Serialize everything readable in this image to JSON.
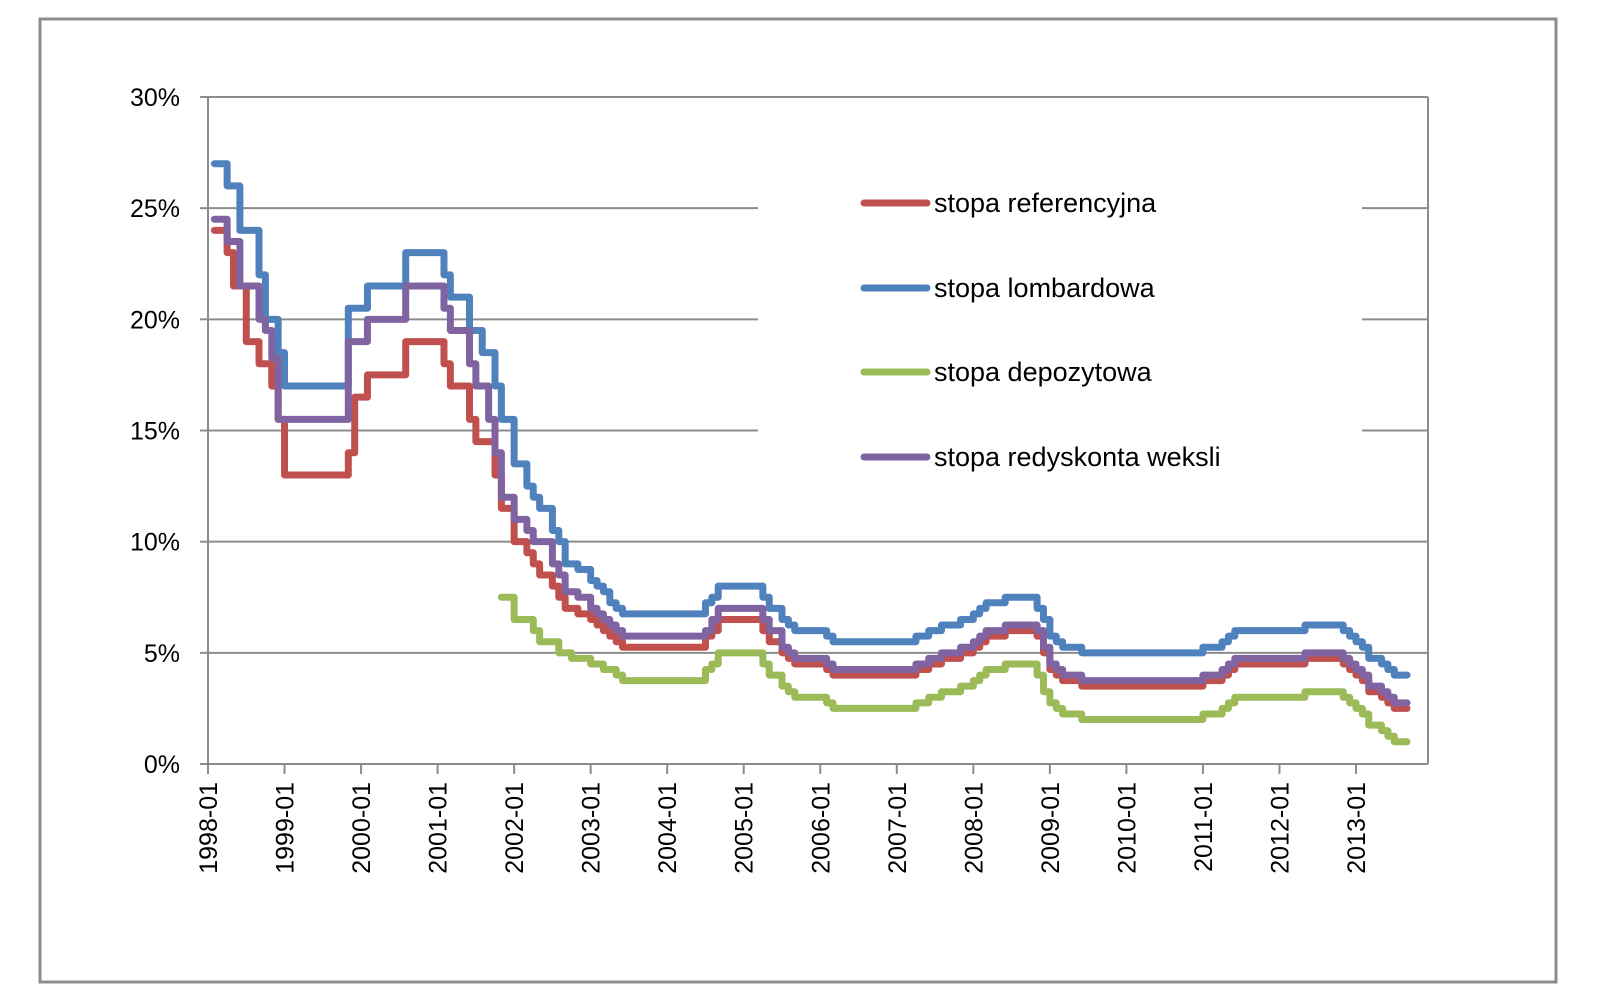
{
  "chart_data": {
    "type": "line",
    "step": true,
    "title": "",
    "xlabel": "",
    "ylabel": "",
    "ylim": [
      0,
      0.3
    ],
    "yticks": [
      0,
      0.05,
      0.1,
      0.15,
      0.2,
      0.25,
      0.3
    ],
    "ytick_labels": [
      "0%",
      "5%",
      "10%",
      "15%",
      "20%",
      "25%",
      "30%"
    ],
    "xticks": [
      "1998-01",
      "1999-01",
      "2000-01",
      "2001-01",
      "2002-01",
      "2003-01",
      "2004-01",
      "2005-01",
      "2006-01",
      "2007-01",
      "2008-01",
      "2009-01",
      "2010-01",
      "2011-01",
      "2012-01",
      "2013-01"
    ],
    "x_range": [
      "1998-01",
      "2013-09"
    ],
    "grid": "horizontal",
    "legend_position": "top-right-inside",
    "series": [
      {
        "name": "stopa referencyjna",
        "color": "#C0504D",
        "points": [
          [
            "1998-02",
            0.24
          ],
          [
            "1998-04",
            0.23
          ],
          [
            "1998-05",
            0.215
          ],
          [
            "1998-07",
            0.19
          ],
          [
            "1998-09",
            0.18
          ],
          [
            "1998-11",
            0.17
          ],
          [
            "1998-12",
            0.155
          ],
          [
            "1999-01",
            0.13
          ],
          [
            "1999-11",
            0.14
          ],
          [
            "1999-12",
            0.165
          ],
          [
            "2000-02",
            0.175
          ],
          [
            "2000-08",
            0.19
          ],
          [
            "2001-02",
            0.18
          ],
          [
            "2001-03",
            0.17
          ],
          [
            "2001-06",
            0.155
          ],
          [
            "2001-07",
            0.145
          ],
          [
            "2001-10",
            0.13
          ],
          [
            "2001-11",
            0.115
          ],
          [
            "2002-01",
            0.1
          ],
          [
            "2002-03",
            0.095
          ],
          [
            "2002-04",
            0.09
          ],
          [
            "2002-05",
            0.085
          ],
          [
            "2002-07",
            0.08
          ],
          [
            "2002-08",
            0.075
          ],
          [
            "2002-09",
            0.07
          ],
          [
            "2002-11",
            0.0675
          ],
          [
            "2003-01",
            0.065
          ],
          [
            "2003-02",
            0.0625
          ],
          [
            "2003-03",
            0.06
          ],
          [
            "2003-04",
            0.0575
          ],
          [
            "2003-05",
            0.055
          ],
          [
            "2003-06",
            0.0525
          ],
          [
            "2004-07",
            0.0575
          ],
          [
            "2004-08",
            0.06
          ],
          [
            "2004-09",
            0.065
          ],
          [
            "2005-04",
            0.06
          ],
          [
            "2005-05",
            0.055
          ],
          [
            "2005-07",
            0.05
          ],
          [
            "2005-08",
            0.0475
          ],
          [
            "2005-09",
            0.045
          ],
          [
            "2006-02",
            0.0425
          ],
          [
            "2006-03",
            0.04
          ],
          [
            "2007-04",
            0.0425
          ],
          [
            "2007-06",
            0.045
          ],
          [
            "2007-08",
            0.0475
          ],
          [
            "2007-11",
            0.05
          ],
          [
            "2008-01",
            0.0525
          ],
          [
            "2008-02",
            0.055
          ],
          [
            "2008-03",
            0.0575
          ],
          [
            "2008-06",
            0.06
          ],
          [
            "2008-11",
            0.0575
          ],
          [
            "2008-12",
            0.05
          ],
          [
            "2009-01",
            0.0425
          ],
          [
            "2009-02",
            0.04
          ],
          [
            "2009-03",
            0.0375
          ],
          [
            "2009-06",
            0.035
          ],
          [
            "2011-01",
            0.0375
          ],
          [
            "2011-04",
            0.04
          ],
          [
            "2011-05",
            0.0425
          ],
          [
            "2011-06",
            0.045
          ],
          [
            "2012-05",
            0.0475
          ],
          [
            "2012-11",
            0.045
          ],
          [
            "2012-12",
            0.0425
          ],
          [
            "2013-01",
            0.04
          ],
          [
            "2013-02",
            0.0375
          ],
          [
            "2013-03",
            0.0325
          ],
          [
            "2013-05",
            0.03
          ],
          [
            "2013-06",
            0.0275
          ],
          [
            "2013-07",
            0.025
          ],
          [
            "2013-09",
            0.025
          ]
        ]
      },
      {
        "name": "stopa lombardowa",
        "color": "#4F81BD",
        "points": [
          [
            "1998-02",
            0.27
          ],
          [
            "1998-04",
            0.26
          ],
          [
            "1998-06",
            0.24
          ],
          [
            "1998-09",
            0.22
          ],
          [
            "1998-10",
            0.2
          ],
          [
            "1998-12",
            0.185
          ],
          [
            "1999-01",
            0.17
          ],
          [
            "1999-11",
            0.205
          ],
          [
            "2000-02",
            0.215
          ],
          [
            "2000-08",
            0.23
          ],
          [
            "2001-02",
            0.22
          ],
          [
            "2001-03",
            0.21
          ],
          [
            "2001-06",
            0.195
          ],
          [
            "2001-08",
            0.185
          ],
          [
            "2001-10",
            0.17
          ],
          [
            "2001-11",
            0.155
          ],
          [
            "2002-01",
            0.135
          ],
          [
            "2002-03",
            0.125
          ],
          [
            "2002-04",
            0.12
          ],
          [
            "2002-05",
            0.115
          ],
          [
            "2002-07",
            0.105
          ],
          [
            "2002-08",
            0.1
          ],
          [
            "2002-09",
            0.09
          ],
          [
            "2002-11",
            0.0875
          ],
          [
            "2003-01",
            0.0825
          ],
          [
            "2003-02",
            0.08
          ],
          [
            "2003-03",
            0.0775
          ],
          [
            "2003-04",
            0.0725
          ],
          [
            "2003-05",
            0.07
          ],
          [
            "2003-06",
            0.0675
          ],
          [
            "2004-07",
            0.0725
          ],
          [
            "2004-08",
            0.075
          ],
          [
            "2004-09",
            0.08
          ],
          [
            "2005-04",
            0.075
          ],
          [
            "2005-05",
            0.07
          ],
          [
            "2005-07",
            0.065
          ],
          [
            "2005-08",
            0.0625
          ],
          [
            "2005-09",
            0.06
          ],
          [
            "2006-02",
            0.0575
          ],
          [
            "2006-03",
            0.055
          ],
          [
            "2007-04",
            0.0575
          ],
          [
            "2007-06",
            0.06
          ],
          [
            "2007-08",
            0.0625
          ],
          [
            "2007-11",
            0.065
          ],
          [
            "2008-01",
            0.0675
          ],
          [
            "2008-02",
            0.07
          ],
          [
            "2008-03",
            0.0725
          ],
          [
            "2008-06",
            0.075
          ],
          [
            "2008-11",
            0.07
          ],
          [
            "2008-12",
            0.065
          ],
          [
            "2009-01",
            0.0575
          ],
          [
            "2009-02",
            0.055
          ],
          [
            "2009-03",
            0.0525
          ],
          [
            "2009-06",
            0.05
          ],
          [
            "2011-01",
            0.0525
          ],
          [
            "2011-04",
            0.055
          ],
          [
            "2011-05",
            0.0575
          ],
          [
            "2011-06",
            0.06
          ],
          [
            "2012-05",
            0.0625
          ],
          [
            "2012-11",
            0.06
          ],
          [
            "2012-12",
            0.0575
          ],
          [
            "2013-01",
            0.055
          ],
          [
            "2013-02",
            0.0525
          ],
          [
            "2013-03",
            0.0475
          ],
          [
            "2013-05",
            0.045
          ],
          [
            "2013-06",
            0.0425
          ],
          [
            "2013-07",
            0.04
          ],
          [
            "2013-09",
            0.04
          ]
        ]
      },
      {
        "name": "stopa depozytowa",
        "color": "#9BBB59",
        "points": [
          [
            "2001-11",
            0.075
          ],
          [
            "2002-01",
            0.065
          ],
          [
            "2002-04",
            0.06
          ],
          [
            "2002-05",
            0.055
          ],
          [
            "2002-08",
            0.05
          ],
          [
            "2002-10",
            0.0475
          ],
          [
            "2003-01",
            0.045
          ],
          [
            "2003-03",
            0.0425
          ],
          [
            "2003-05",
            0.04
          ],
          [
            "2003-06",
            0.0375
          ],
          [
            "2004-07",
            0.0425
          ],
          [
            "2004-08",
            0.045
          ],
          [
            "2004-09",
            0.05
          ],
          [
            "2005-04",
            0.045
          ],
          [
            "2005-05",
            0.04
          ],
          [
            "2005-07",
            0.035
          ],
          [
            "2005-08",
            0.0325
          ],
          [
            "2005-09",
            0.03
          ],
          [
            "2006-02",
            0.0275
          ],
          [
            "2006-03",
            0.025
          ],
          [
            "2007-04",
            0.0275
          ],
          [
            "2007-06",
            0.03
          ],
          [
            "2007-08",
            0.0325
          ],
          [
            "2007-11",
            0.035
          ],
          [
            "2008-01",
            0.0375
          ],
          [
            "2008-02",
            0.04
          ],
          [
            "2008-03",
            0.0425
          ],
          [
            "2008-06",
            0.045
          ],
          [
            "2008-11",
            0.04
          ],
          [
            "2008-12",
            0.0325
          ],
          [
            "2009-01",
            0.0275
          ],
          [
            "2009-02",
            0.025
          ],
          [
            "2009-03",
            0.0225
          ],
          [
            "2009-06",
            0.02
          ],
          [
            "2011-01",
            0.0225
          ],
          [
            "2011-04",
            0.025
          ],
          [
            "2011-05",
            0.0275
          ],
          [
            "2011-06",
            0.03
          ],
          [
            "2012-05",
            0.0325
          ],
          [
            "2012-11",
            0.03
          ],
          [
            "2012-12",
            0.0275
          ],
          [
            "2013-01",
            0.025
          ],
          [
            "2013-02",
            0.0225
          ],
          [
            "2013-03",
            0.0175
          ],
          [
            "2013-05",
            0.015
          ],
          [
            "2013-06",
            0.0125
          ],
          [
            "2013-07",
            0.01
          ],
          [
            "2013-09",
            0.01
          ]
        ]
      },
      {
        "name": "stopa redyskonta weksli",
        "color": "#8064A2",
        "points": [
          [
            "1998-02",
            0.245
          ],
          [
            "1998-04",
            0.235
          ],
          [
            "1998-06",
            0.215
          ],
          [
            "1998-09",
            0.2
          ],
          [
            "1998-10",
            0.195
          ],
          [
            "1998-11",
            0.1825
          ],
          [
            "1998-12",
            0.155
          ],
          [
            "1999-11",
            0.19
          ],
          [
            "2000-02",
            0.2
          ],
          [
            "2000-08",
            0.215
          ],
          [
            "2001-02",
            0.205
          ],
          [
            "2001-03",
            0.195
          ],
          [
            "2001-06",
            0.18
          ],
          [
            "2001-07",
            0.17
          ],
          [
            "2001-09",
            0.155
          ],
          [
            "2001-10",
            0.14
          ],
          [
            "2001-11",
            0.12
          ],
          [
            "2002-01",
            0.11
          ],
          [
            "2002-03",
            0.105
          ],
          [
            "2002-04",
            0.1
          ],
          [
            "2002-07",
            0.09
          ],
          [
            "2002-08",
            0.085
          ],
          [
            "2002-09",
            0.0775
          ],
          [
            "2002-11",
            0.075
          ],
          [
            "2003-01",
            0.07
          ],
          [
            "2003-02",
            0.0675
          ],
          [
            "2003-03",
            0.065
          ],
          [
            "2003-04",
            0.0625
          ],
          [
            "2003-05",
            0.06
          ],
          [
            "2003-06",
            0.0575
          ],
          [
            "2004-07",
            0.06
          ],
          [
            "2004-08",
            0.065
          ],
          [
            "2004-09",
            0.07
          ],
          [
            "2005-04",
            0.065
          ],
          [
            "2005-05",
            0.06
          ],
          [
            "2005-07",
            0.0525
          ],
          [
            "2005-08",
            0.05
          ],
          [
            "2005-09",
            0.0475
          ],
          [
            "2006-02",
            0.045
          ],
          [
            "2006-03",
            0.0425
          ],
          [
            "2007-04",
            0.045
          ],
          [
            "2007-06",
            0.0475
          ],
          [
            "2007-08",
            0.05
          ],
          [
            "2007-11",
            0.0525
          ],
          [
            "2008-01",
            0.055
          ],
          [
            "2008-02",
            0.0575
          ],
          [
            "2008-03",
            0.06
          ],
          [
            "2008-06",
            0.0625
          ],
          [
            "2008-11",
            0.06
          ],
          [
            "2008-12",
            0.0525
          ],
          [
            "2009-01",
            0.045
          ],
          [
            "2009-02",
            0.0425
          ],
          [
            "2009-03",
            0.04
          ],
          [
            "2009-06",
            0.0375
          ],
          [
            "2011-01",
            0.04
          ],
          [
            "2011-04",
            0.0425
          ],
          [
            "2011-05",
            0.045
          ],
          [
            "2011-06",
            0.0475
          ],
          [
            "2012-05",
            0.05
          ],
          [
            "2012-11",
            0.0475
          ],
          [
            "2012-12",
            0.045
          ],
          [
            "2013-01",
            0.0425
          ],
          [
            "2013-02",
            0.04
          ],
          [
            "2013-03",
            0.035
          ],
          [
            "2013-05",
            0.0325
          ],
          [
            "2013-06",
            0.03
          ],
          [
            "2013-07",
            0.0275
          ],
          [
            "2013-09",
            0.0275
          ]
        ]
      }
    ]
  }
}
